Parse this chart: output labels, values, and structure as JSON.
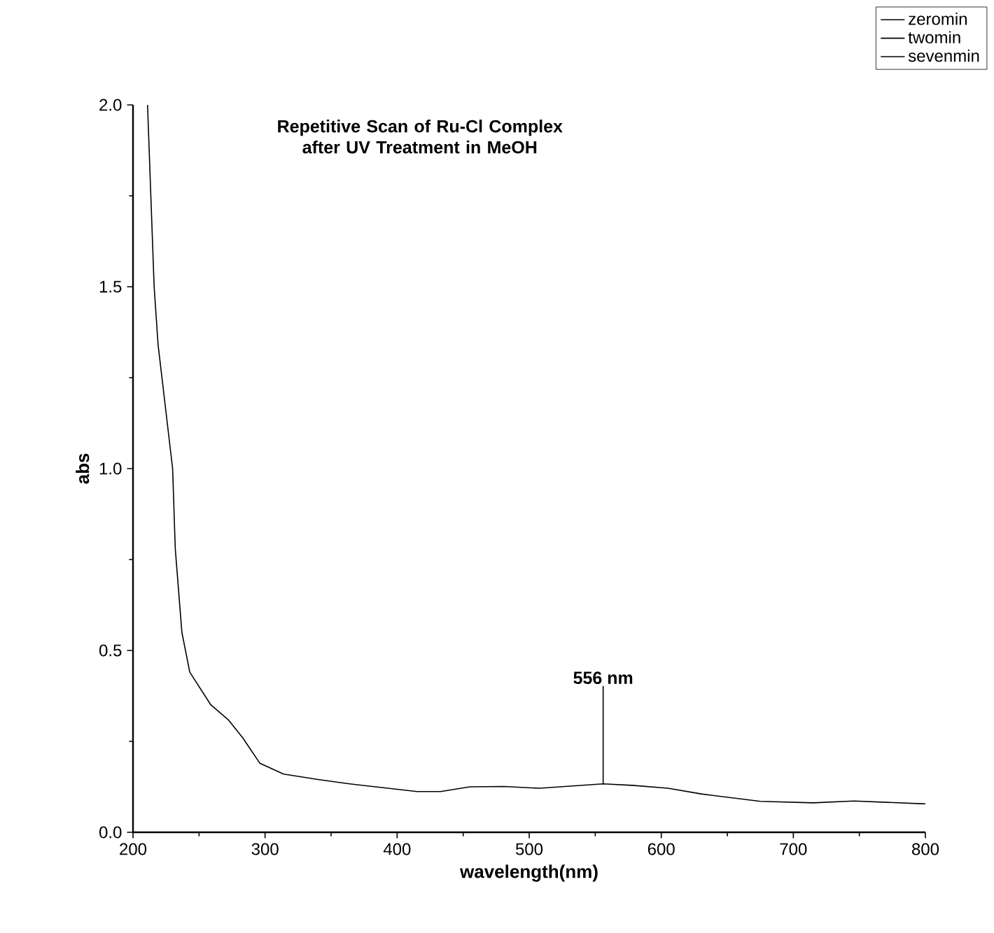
{
  "chart_data": {
    "type": "line",
    "title": "Repetitive Scan of Ru-Cl Complex after UV Treatment in MeOH",
    "xlabel": "wavelength(nm)",
    "ylabel": "abs",
    "x": [
      211,
      216,
      219,
      230,
      232,
      237,
      243,
      259,
      272,
      283,
      296,
      314,
      340,
      362,
      393,
      415,
      433,
      455,
      481,
      508,
      556,
      578,
      605,
      631,
      675,
      715,
      746,
      800
    ],
    "series": [
      {
        "name": "zeromin",
        "color": "#000000",
        "values": [
          2.0,
          1.5,
          1.34,
          1.0,
          0.78,
          0.55,
          0.44,
          0.35,
          0.31,
          0.26,
          0.19,
          0.16,
          0.145,
          0.134,
          0.121,
          0.112,
          0.112,
          0.125,
          0.126,
          0.121,
          0.133,
          0.129,
          0.121,
          0.105,
          0.085,
          0.081,
          0.086,
          0.078
        ]
      },
      {
        "name": "twomin",
        "color": "#000000",
        "values": [
          null,
          null,
          null,
          null,
          null,
          null,
          null,
          null,
          null,
          null,
          null,
          null,
          null,
          null,
          null,
          null,
          null,
          null,
          null,
          null,
          null,
          null,
          null,
          null,
          null,
          null,
          null,
          null
        ]
      },
      {
        "name": "sevenmin",
        "color": "#000000",
        "values": [
          null,
          null,
          null,
          null,
          null,
          null,
          null,
          null,
          null,
          null,
          null,
          null,
          null,
          null,
          null,
          null,
          null,
          null,
          null,
          null,
          null,
          null,
          null,
          null,
          null,
          null,
          null,
          null
        ]
      }
    ],
    "xlim": [
      200,
      800
    ],
    "xticks": [
      200,
      300,
      400,
      500,
      600,
      700,
      800
    ],
    "ylim": [
      0,
      2.0
    ],
    "yticks": [
      {
        "value": 0,
        "label": "0.0"
      },
      {
        "value": 0.5,
        "label": "0.5"
      },
      {
        "value": 1.0,
        "label": "1.0"
      },
      {
        "value": 1.5,
        "label": "1.5"
      },
      {
        "value": 2.0,
        "label": "2.0"
      }
    ],
    "annotations": [
      {
        "text": "556 nm",
        "x": 556,
        "y": 0.133
      }
    ],
    "legend": "top right",
    "grid": false
  }
}
